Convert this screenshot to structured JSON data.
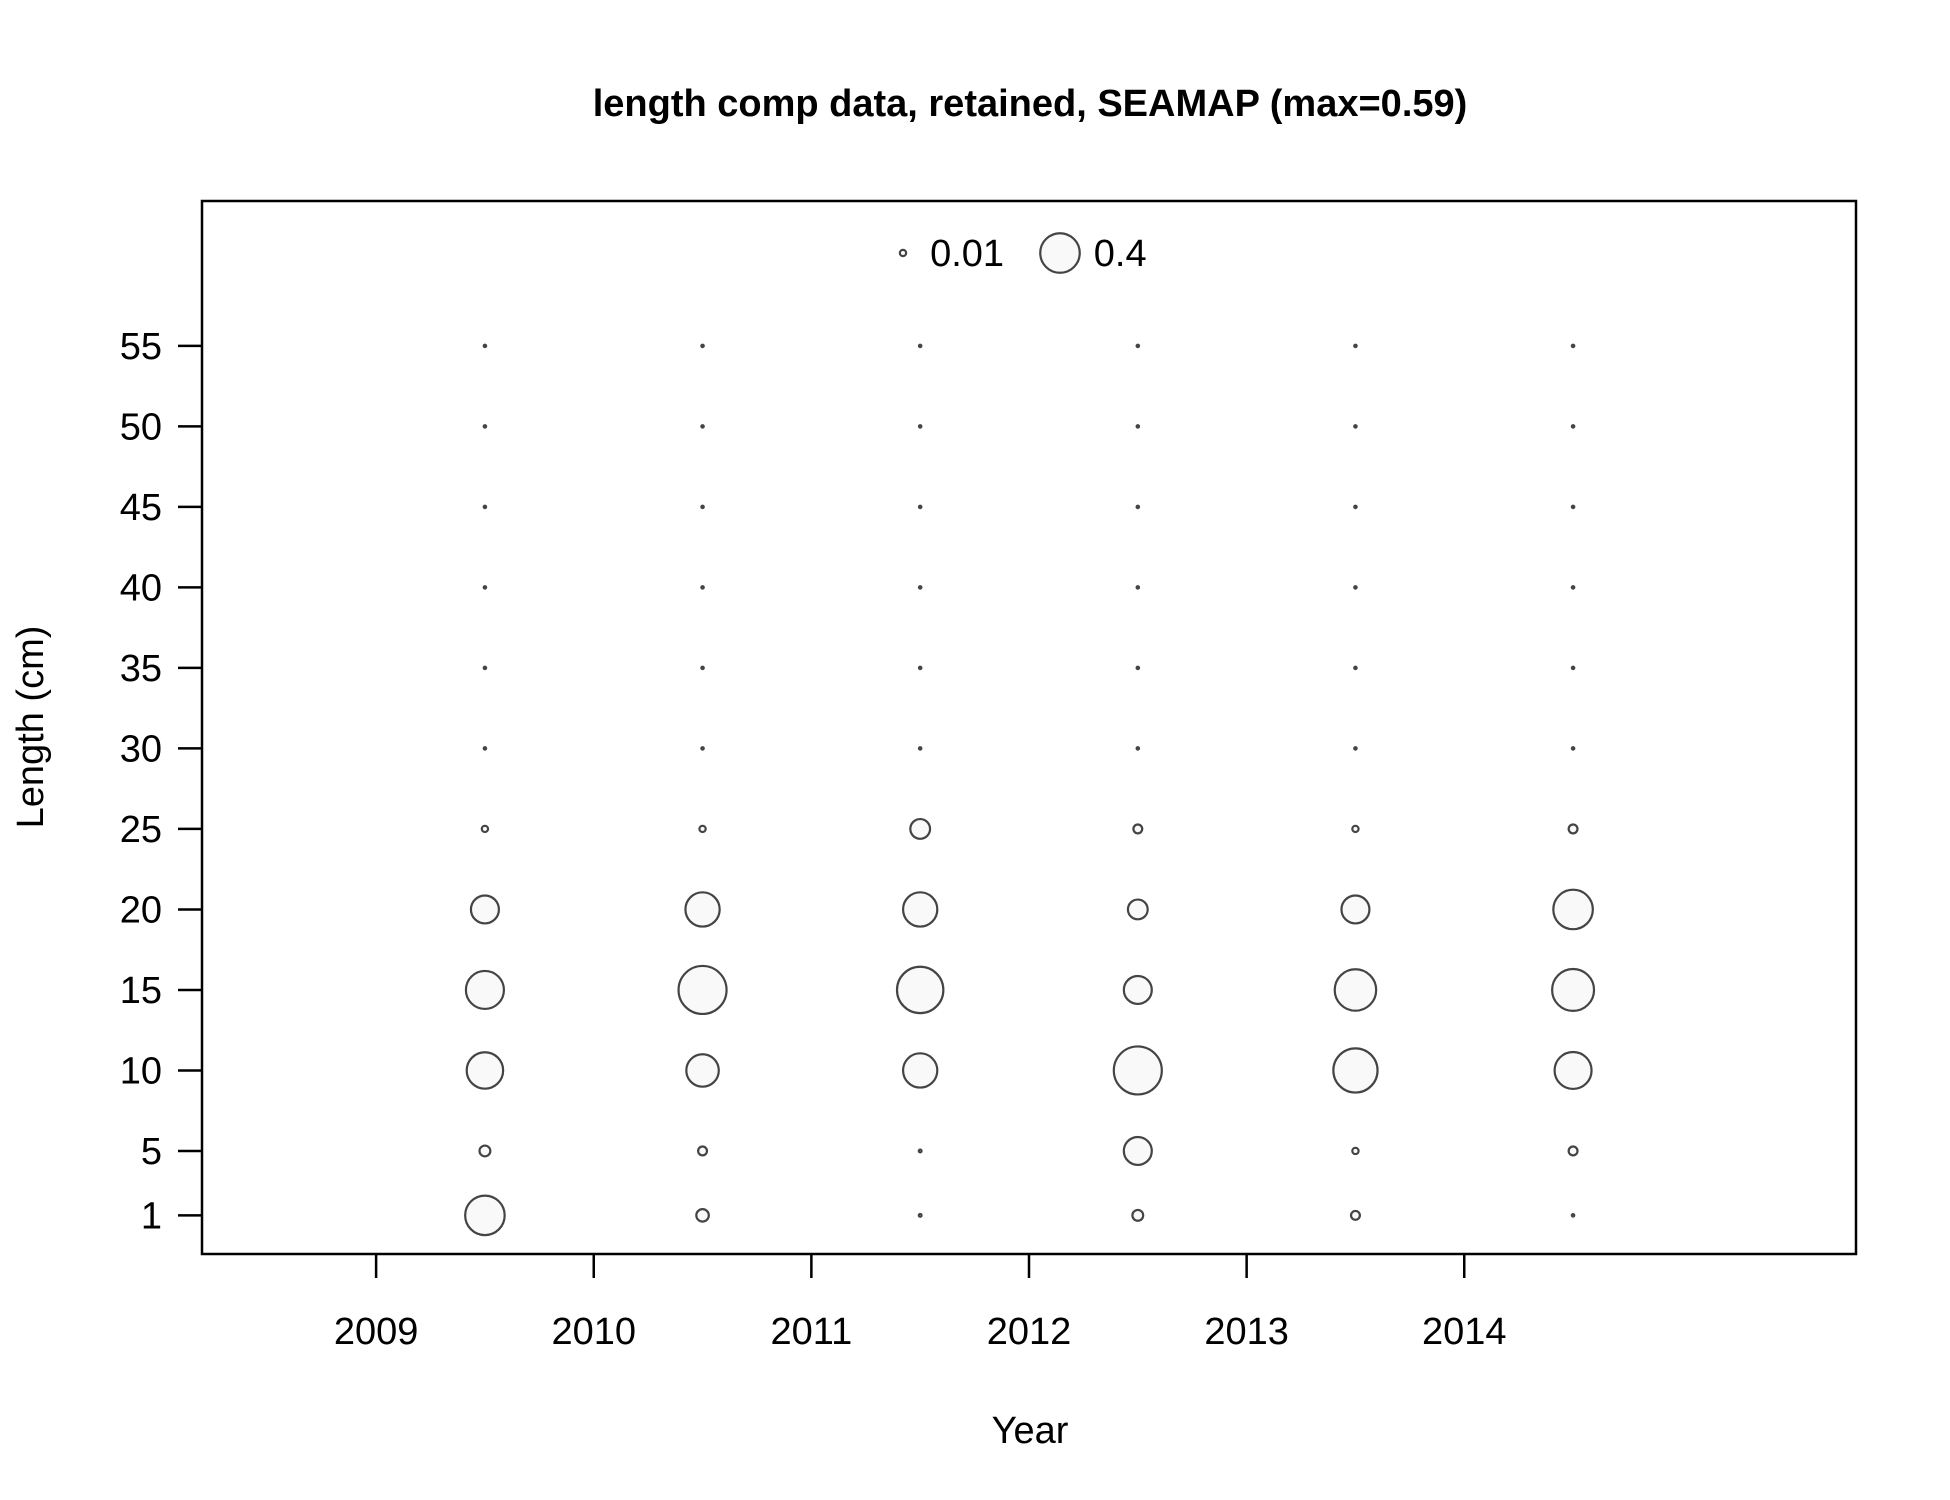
{
  "chart_data": {
    "type": "bubble",
    "title": "length comp data, retained, SEAMAP (max=0.59)",
    "xlabel": "Year",
    "ylabel": "Length (cm)",
    "xlim": [
      2008.2,
      2015.8
    ],
    "ylim": [
      -1.4,
      64
    ],
    "x_ticks": [
      2009,
      2010,
      2011,
      2012,
      2013,
      2014
    ],
    "x_tick_labels": [
      "2009",
      "2010",
      "2011",
      "2012",
      "2013",
      "2014"
    ],
    "y_ticks": [
      1,
      5,
      10,
      15,
      20,
      25,
      30,
      35,
      40,
      45,
      50,
      55
    ],
    "y_tick_labels": [
      "1",
      "5",
      "10",
      "15",
      "20",
      "25",
      "30",
      "35",
      "40",
      "45",
      "50",
      "55"
    ],
    "legend": {
      "position": "top",
      "items": [
        {
          "label": "0.01",
          "value": 0.01
        },
        {
          "label": "0.4",
          "value": 0.4
        }
      ]
    },
    "max_value": 0.59,
    "lengths": [
      1,
      5,
      10,
      15,
      20,
      25,
      30,
      35,
      40,
      45,
      50,
      55
    ],
    "years": [
      2009.5,
      2010.5,
      2011.5,
      2012.5,
      2013.5,
      2014.5
    ],
    "values": [
      [
        0.4,
        0.03,
        0.34,
        0.37,
        0.2,
        0.01,
        0.0,
        0.0,
        0.0,
        0.0,
        0.0,
        0.0
      ],
      [
        0.04,
        0.02,
        0.27,
        0.59,
        0.3,
        0.01,
        0.0,
        0.0,
        0.0,
        0.0,
        0.0,
        0.0
      ],
      [
        0.002,
        0.002,
        0.3,
        0.55,
        0.3,
        0.1,
        0.0,
        0.0,
        0.0,
        0.0,
        0.0,
        0.0
      ],
      [
        0.03,
        0.2,
        0.59,
        0.2,
        0.1,
        0.02,
        0.0,
        0.0,
        0.0,
        0.0,
        0.0,
        0.0
      ],
      [
        0.02,
        0.01,
        0.5,
        0.44,
        0.2,
        0.01,
        0.0,
        0.0,
        0.0,
        0.0,
        0.0,
        0.0
      ],
      [
        0.001,
        0.02,
        0.35,
        0.45,
        0.4,
        0.02,
        0.0,
        0.0,
        0.0,
        0.0,
        0.0,
        0.0
      ]
    ],
    "marker_fill": "#f9f9f9",
    "marker_stroke": "#444444",
    "grid": false
  }
}
